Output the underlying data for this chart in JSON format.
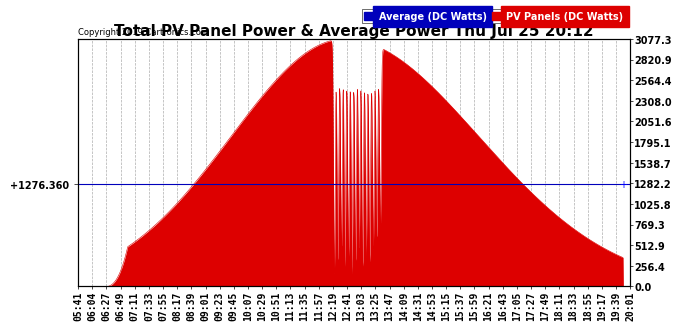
{
  "title": "Total PV Panel Power & Average Power Thu Jul 25 20:12",
  "copyright": "Copyright 2019 Cartronics.com",
  "yticks_right": [
    0.0,
    256.4,
    512.9,
    769.3,
    1025.8,
    1282.2,
    1538.7,
    1795.1,
    2051.6,
    2308.0,
    2564.4,
    2820.9,
    3077.3
  ],
  "ymax": 3077.3,
  "ymin": 0.0,
  "avg_line_value": 1276.36,
  "avg_label": "1276.360",
  "legend_avg_label": "Average (DC Watts)",
  "legend_pv_label": "PV Panels (DC Watts)",
  "avg_color": "#0000bb",
  "pv_color": "#dd0000",
  "bg_color": "#ffffff",
  "grid_color": "#999999",
  "title_fontsize": 11,
  "tick_fontsize": 7,
  "xtick_labels": [
    "05:41",
    "06:04",
    "06:27",
    "06:49",
    "07:11",
    "07:33",
    "07:55",
    "08:17",
    "08:39",
    "09:01",
    "09:23",
    "09:45",
    "10:07",
    "10:29",
    "10:51",
    "11:13",
    "11:35",
    "11:57",
    "12:19",
    "12:41",
    "13:03",
    "13:25",
    "13:47",
    "14:09",
    "14:31",
    "14:53",
    "15:15",
    "15:37",
    "15:59",
    "16:21",
    "16:43",
    "17:05",
    "17:27",
    "17:49",
    "18:11",
    "18:33",
    "18:55",
    "19:17",
    "19:39",
    "20:01"
  ],
  "n_xticks": 40
}
